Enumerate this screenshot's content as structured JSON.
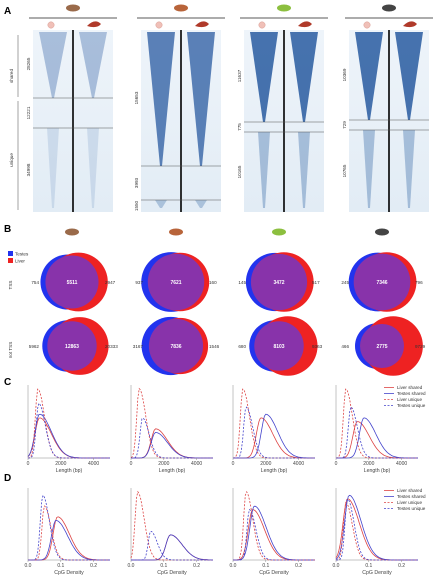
{
  "panel_labels": [
    "A",
    "B",
    "C",
    "D"
  ],
  "panel_a": {
    "row_labels": [
      "shared",
      "unique"
    ],
    "species": [
      {
        "icon": "platypus-icon",
        "counts": [
          "28265",
          "12221",
          "34998"
        ]
      },
      {
        "icon": "opossum-icon",
        "counts": [
          "15653",
          "3993",
          "1550"
        ]
      },
      {
        "icon": "lizard-icon",
        "counts": [
          "11637",
          "775",
          "10165"
        ]
      },
      {
        "icon": "mouse-icon",
        "counts": [
          "10369",
          "729",
          "10765"
        ]
      }
    ]
  },
  "panel_b": {
    "legend": [
      "Testes",
      "Liver"
    ],
    "row_labels": [
      "TSS",
      "not TSS"
    ],
    "colors": {
      "testes": "#2233ee",
      "liver": "#ee2222",
      "overlap": "#8833aa"
    },
    "venns": [
      {
        "row": 0,
        "testes_only": "754",
        "shared": "5511",
        "liver_only": "2947"
      },
      {
        "row": 0,
        "testes_only": "937",
        "shared": "7621",
        "liver_only": "160"
      },
      {
        "row": 0,
        "testes_only": "145",
        "shared": "3472",
        "liver_only": "517"
      },
      {
        "row": 0,
        "testes_only": "245",
        "shared": "7346",
        "liver_only": "796"
      },
      {
        "row": 1,
        "testes_only": "5962",
        "shared": "12863",
        "liver_only": "20333"
      },
      {
        "row": 1,
        "testes_only": "3167",
        "shared": "7836",
        "liver_only": "1546"
      },
      {
        "row": 1,
        "testes_only": "680",
        "shared": "8103",
        "liver_only": "9363"
      },
      {
        "row": 1,
        "testes_only": "466",
        "shared": "2775",
        "liver_only": "9729"
      }
    ]
  },
  "panel_c": {
    "xlabel": "Length (bp)",
    "xticks": [
      "0",
      "2000",
      "4000"
    ],
    "legend": [
      "Liver shared",
      "Testes shared",
      "Liver unique",
      "Testes unique"
    ]
  },
  "panel_d": {
    "xlabel": "CpG Density",
    "xticks": [
      "0.0",
      "0.1",
      "0.2"
    ],
    "legend": [
      "Liver shared",
      "Testes shared",
      "Liver unique",
      "Testes unique"
    ]
  },
  "chart_data": [
    {
      "type": "line",
      "panel": "C",
      "species": "platypus",
      "xlabel": "Length (bp)",
      "xlim": [
        0,
        5000
      ],
      "series": [
        {
          "name": "Liver shared",
          "peak_x": 700,
          "peak_y": 0.55
        },
        {
          "name": "Testes shared",
          "peak_x": 700,
          "peak_y": 0.6
        },
        {
          "name": "Liver unique",
          "peak_x": 600,
          "peak_y": 0.95
        },
        {
          "name": "Testes unique",
          "peak_x": 650,
          "peak_y": 0.75
        }
      ]
    },
    {
      "type": "line",
      "panel": "C",
      "species": "opossum",
      "xlabel": "Length (bp)",
      "xlim": [
        0,
        5000
      ],
      "series": [
        {
          "name": "Liver shared",
          "peak_x": 1500,
          "peak_y": 0.4
        },
        {
          "name": "Testes shared",
          "peak_x": 1500,
          "peak_y": 0.35
        },
        {
          "name": "Liver unique",
          "peak_x": 500,
          "peak_y": 0.95
        },
        {
          "name": "Testes unique",
          "peak_x": 700,
          "peak_y": 0.55
        }
      ]
    },
    {
      "type": "line",
      "panel": "C",
      "species": "lizard",
      "xlabel": "Length (bp)",
      "xlim": [
        0,
        5000
      ],
      "series": [
        {
          "name": "Liver shared",
          "peak_x": 1700,
          "peak_y": 0.55
        },
        {
          "name": "Testes shared",
          "peak_x": 2000,
          "peak_y": 0.6
        },
        {
          "name": "Liver unique",
          "peak_x": 600,
          "peak_y": 0.95
        },
        {
          "name": "Testes unique",
          "peak_x": 800,
          "peak_y": 0.7
        }
      ]
    },
    {
      "type": "line",
      "panel": "C",
      "species": "mouse",
      "xlabel": "Length (bp)",
      "xlim": [
        0,
        5000
      ],
      "series": [
        {
          "name": "Liver shared",
          "peak_x": 1300,
          "peak_y": 0.5
        },
        {
          "name": "Testes shared",
          "peak_x": 1700,
          "peak_y": 0.55
        },
        {
          "name": "Liver unique",
          "peak_x": 600,
          "peak_y": 0.95
        },
        {
          "name": "Testes unique",
          "peak_x": 900,
          "peak_y": 0.7
        }
      ]
    },
    {
      "type": "line",
      "panel": "D",
      "species": "platypus",
      "xlabel": "CpG Density",
      "xlim": [
        0,
        0.25
      ],
      "series": [
        {
          "name": "Liver shared",
          "peak_x": 0.09,
          "peak_y": 0.6
        },
        {
          "name": "Testes shared",
          "peak_x": 0.085,
          "peak_y": 0.55
        },
        {
          "name": "Liver unique",
          "peak_x": 0.05,
          "peak_y": 0.75
        },
        {
          "name": "Testes unique",
          "peak_x": 0.045,
          "peak_y": 0.9
        }
      ]
    },
    {
      "type": "line",
      "panel": "D",
      "species": "opossum",
      "xlabel": "CpG Density",
      "xlim": [
        0,
        0.25
      ],
      "series": [
        {
          "name": "Liver shared",
          "peak_x": 0.12,
          "peak_y": 0.35
        },
        {
          "name": "Testes shared",
          "peak_x": 0.12,
          "peak_y": 0.35
        },
        {
          "name": "Liver unique",
          "peak_x": 0.02,
          "peak_y": 0.95
        },
        {
          "name": "Testes unique",
          "peak_x": 0.06,
          "peak_y": 0.4
        }
      ]
    },
    {
      "type": "line",
      "panel": "D",
      "species": "lizard",
      "xlabel": "CpG Density",
      "xlim": [
        0,
        0.25
      ],
      "series": [
        {
          "name": "Liver shared",
          "peak_x": 0.06,
          "peak_y": 0.7
        },
        {
          "name": "Testes shared",
          "peak_x": 0.065,
          "peak_y": 0.75
        },
        {
          "name": "Liver unique",
          "peak_x": 0.04,
          "peak_y": 0.95
        },
        {
          "name": "Testes unique",
          "peak_x": 0.05,
          "peak_y": 0.7
        }
      ]
    },
    {
      "type": "line",
      "panel": "D",
      "species": "mouse",
      "xlabel": "CpG Density",
      "xlim": [
        0,
        0.25
      ],
      "series": [
        {
          "name": "Liver shared",
          "peak_x": 0.035,
          "peak_y": 0.85
        },
        {
          "name": "Testes shared",
          "peak_x": 0.04,
          "peak_y": 0.9
        },
        {
          "name": "Liver unique",
          "peak_x": 0.03,
          "peak_y": 0.8
        },
        {
          "name": "Testes unique",
          "peak_x": 0.035,
          "peak_y": 0.85
        }
      ]
    }
  ]
}
